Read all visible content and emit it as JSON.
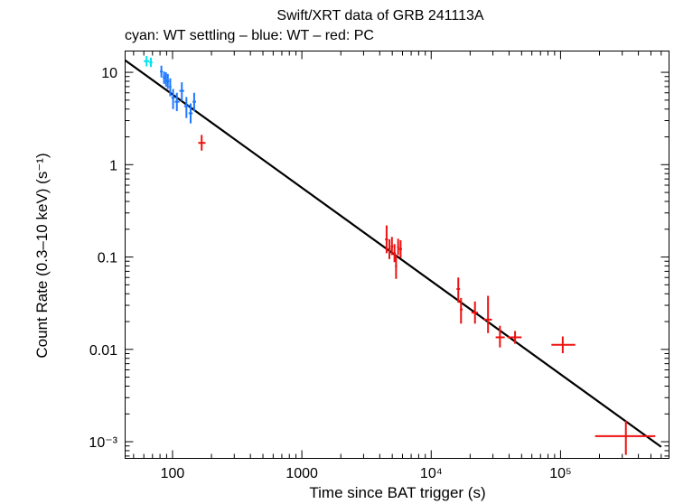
{
  "chart_data": {
    "type": "scatter",
    "title": "Swift/XRT data of GRB 241113A",
    "subtitle": "cyan: WT settling – blue: WT – red: PC",
    "xlabel": "Time since BAT trigger (s)",
    "ylabel": "Count Rate (0.3–10 keV) (s⁻¹)",
    "xscale": "log",
    "yscale": "log",
    "xlim": [
      43,
      690000
    ],
    "ylim": [
      0.00066,
      17
    ],
    "x_ticks": [
      {
        "value": 100,
        "label": "100"
      },
      {
        "value": 1000,
        "label": "1000"
      },
      {
        "value": 10000,
        "label": "10⁴"
      },
      {
        "value": 100000,
        "label": "10⁵"
      }
    ],
    "y_ticks": [
      {
        "value": 10,
        "label": "10"
      },
      {
        "value": 1,
        "label": "1"
      },
      {
        "value": 0.1,
        "label": "0.1"
      },
      {
        "value": 0.01,
        "label": "0.01"
      },
      {
        "value": 0.001,
        "label": "10⁻³"
      }
    ],
    "series": [
      {
        "name": "WT settling",
        "color": "#00e5ee",
        "points": [
          {
            "x": 63,
            "y": 13.2,
            "xlo": 60,
            "xhi": 66,
            "ylo": 11.6,
            "yhi": 15.0
          },
          {
            "x": 68,
            "y": 12.8,
            "xlo": 66,
            "xhi": 70,
            "ylo": 11.4,
            "yhi": 14.4
          }
        ]
      },
      {
        "name": "WT",
        "color": "#1e78ff",
        "points": [
          {
            "x": 82,
            "y": 10.2,
            "xlo": 80,
            "xhi": 84,
            "ylo": 8.8,
            "yhi": 11.8
          },
          {
            "x": 86,
            "y": 8.8,
            "xlo": 84,
            "xhi": 88,
            "ylo": 7.5,
            "yhi": 10.2
          },
          {
            "x": 89,
            "y": 8.5,
            "xlo": 88,
            "xhi": 90,
            "ylo": 7.0,
            "yhi": 10.0
          },
          {
            "x": 92,
            "y": 8.0,
            "xlo": 90,
            "xhi": 94,
            "ylo": 6.6,
            "yhi": 9.6
          },
          {
            "x": 96,
            "y": 7.0,
            "xlo": 94,
            "xhi": 98,
            "ylo": 5.5,
            "yhi": 8.6
          },
          {
            "x": 101,
            "y": 5.3,
            "xlo": 98,
            "xhi": 104,
            "ylo": 4.0,
            "yhi": 6.6
          },
          {
            "x": 108,
            "y": 4.8,
            "xlo": 104,
            "xhi": 113,
            "ylo": 3.8,
            "yhi": 6.0
          },
          {
            "x": 118,
            "y": 6.3,
            "xlo": 113,
            "xhi": 123,
            "ylo": 4.9,
            "yhi": 7.8
          },
          {
            "x": 128,
            "y": 4.3,
            "xlo": 123,
            "xhi": 133,
            "ylo": 3.2,
            "yhi": 5.4
          },
          {
            "x": 138,
            "y": 3.6,
            "xlo": 133,
            "xhi": 143,
            "ylo": 2.8,
            "yhi": 4.6
          },
          {
            "x": 147,
            "y": 4.8,
            "xlo": 143,
            "xhi": 152,
            "ylo": 3.8,
            "yhi": 6.0
          }
        ]
      },
      {
        "name": "PC",
        "color": "#ee1111",
        "points": [
          {
            "x": 168,
            "y": 1.72,
            "xlo": 158,
            "xhi": 180,
            "ylo": 1.42,
            "yhi": 2.1
          },
          {
            "x": 4520,
            "y": 0.155,
            "xlo": 4400,
            "xhi": 4640,
            "ylo": 0.11,
            "yhi": 0.22
          },
          {
            "x": 4750,
            "y": 0.122,
            "xlo": 4640,
            "xhi": 4860,
            "ylo": 0.095,
            "yhi": 0.155
          },
          {
            "x": 4970,
            "y": 0.13,
            "xlo": 4860,
            "xhi": 5080,
            "ylo": 0.105,
            "yhi": 0.165
          },
          {
            "x": 5200,
            "y": 0.11,
            "xlo": 5080,
            "xhi": 5320,
            "ylo": 0.088,
            "yhi": 0.138
          },
          {
            "x": 5350,
            "y": 0.08,
            "xlo": 5250,
            "xhi": 5450,
            "ylo": 0.058,
            "yhi": 0.105
          },
          {
            "x": 5550,
            "y": 0.128,
            "xlo": 5450,
            "xhi": 5650,
            "ylo": 0.105,
            "yhi": 0.158
          },
          {
            "x": 5800,
            "y": 0.122,
            "xlo": 5650,
            "xhi": 5950,
            "ylo": 0.098,
            "yhi": 0.152
          },
          {
            "x": 16200,
            "y": 0.045,
            "xlo": 15700,
            "xhi": 16700,
            "ylo": 0.032,
            "yhi": 0.06
          },
          {
            "x": 17000,
            "y": 0.027,
            "xlo": 16700,
            "xhi": 17500,
            "ylo": 0.019,
            "yhi": 0.036
          },
          {
            "x": 21800,
            "y": 0.025,
            "xlo": 20500,
            "xhi": 23000,
            "ylo": 0.019,
            "yhi": 0.033
          },
          {
            "x": 27500,
            "y": 0.021,
            "xlo": 25500,
            "xhi": 29500,
            "ylo": 0.015,
            "yhi": 0.038
          },
          {
            "x": 34000,
            "y": 0.0135,
            "xlo": 31500,
            "xhi": 37000,
            "ylo": 0.0105,
            "yhi": 0.018
          },
          {
            "x": 44500,
            "y": 0.0135,
            "xlo": 39000,
            "xhi": 50000,
            "ylo": 0.0115,
            "yhi": 0.0158
          },
          {
            "x": 104000,
            "y": 0.0112,
            "xlo": 85000,
            "xhi": 130000,
            "ylo": 0.0091,
            "yhi": 0.0138
          },
          {
            "x": 320000,
            "y": 0.00115,
            "xlo": 185000,
            "xhi": 540000,
            "ylo": 0.00072,
            "yhi": 0.00168
          }
        ]
      }
    ],
    "model": {
      "name": "power-law fit",
      "color": "#000000",
      "x": [
        43,
        600000
      ],
      "y": [
        13.5,
        0.00088
      ]
    }
  }
}
